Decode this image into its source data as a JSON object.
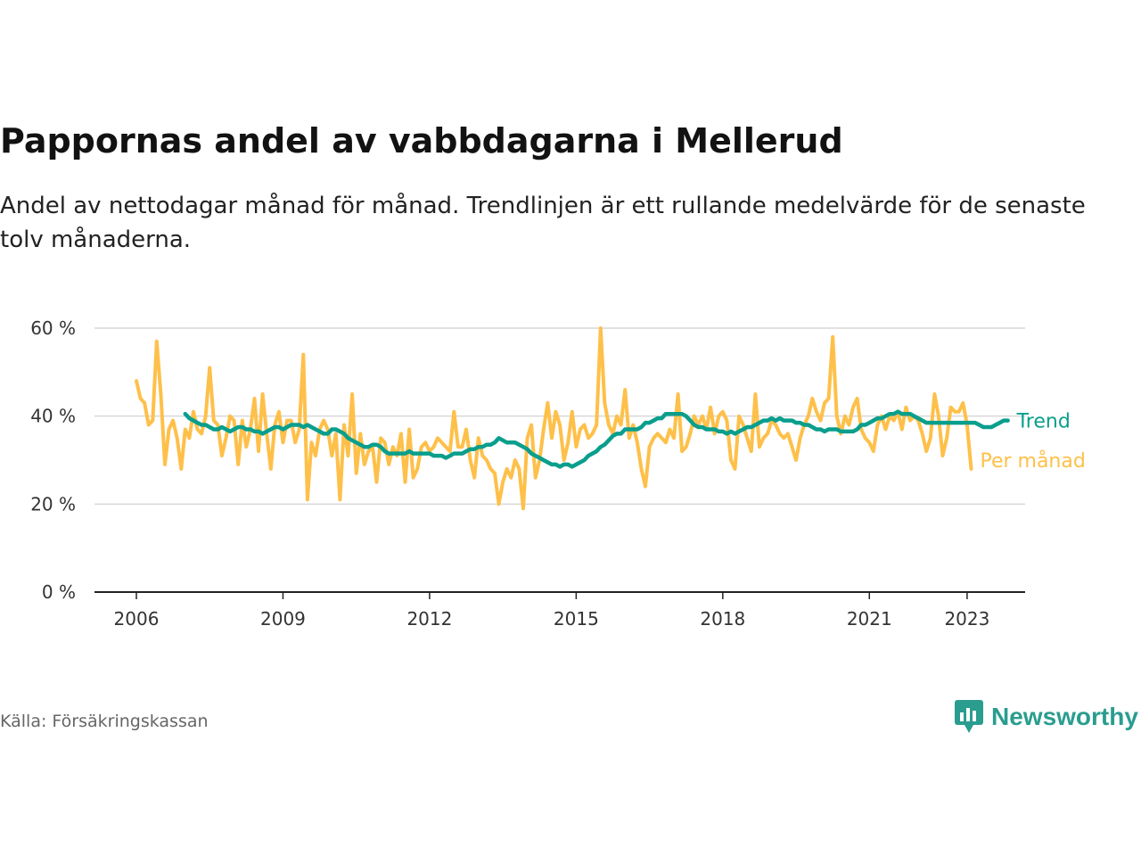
{
  "title": "Pappornas andel av vabbdagarna i Mellerud",
  "subtitle": "Andel av nettodagar månad för månad. Trendlinjen är ett rullande medelvärde för de senaste tolv månaderna.",
  "source": "Källa: Försäkringskassan",
  "brand": "Newsworthy",
  "colors": {
    "monthly": "#fec04a",
    "trend": "#0a9e8c",
    "grid": "#d9d9d9",
    "axis": "#222222"
  },
  "chart_data": {
    "type": "line",
    "title": "Pappornas andel av vabbdagarna i Mellerud",
    "ylim": [
      0,
      60
    ],
    "y_ticks": [
      "0 %",
      "20 %",
      "40 %",
      "60 %"
    ],
    "y_tick_values": [
      0,
      20,
      40,
      60
    ],
    "x_ticks": [
      "2006",
      "2009",
      "2012",
      "2015",
      "2018",
      "2021",
      "2023"
    ],
    "x_tick_values": [
      2006,
      2009,
      2012,
      2015,
      2018,
      2021,
      2023
    ],
    "grid": true,
    "series": [
      {
        "name": "Per månad",
        "color": "#fec04a",
        "x_start": "2006-01",
        "values": [
          48,
          44,
          43,
          38,
          39,
          57,
          45,
          29,
          37,
          39,
          35,
          28,
          37,
          35,
          41,
          37,
          36,
          40,
          51,
          39,
          38,
          31,
          35,
          40,
          39,
          29,
          39,
          33,
          37,
          44,
          32,
          45,
          36,
          28,
          38,
          41,
          34,
          39,
          39,
          34,
          37,
          54,
          21,
          34,
          31,
          37,
          39,
          37,
          31,
          36,
          21,
          38,
          31,
          45,
          27,
          36,
          29,
          32,
          33,
          25,
          35,
          34,
          29,
          33,
          31,
          36,
          25,
          37,
          26,
          28,
          33,
          34,
          32,
          33,
          35,
          34,
          33,
          32,
          41,
          33,
          33,
          37,
          30,
          26,
          35,
          31,
          30,
          28,
          27,
          20,
          25,
          28,
          26,
          30,
          28,
          19,
          35,
          38,
          26,
          30,
          37,
          43,
          35,
          41,
          38,
          30,
          34,
          41,
          33,
          37,
          38,
          35,
          36,
          38,
          60,
          43,
          38,
          36,
          40,
          38,
          46,
          35,
          38,
          34,
          28,
          24,
          33,
          35,
          36,
          35,
          34,
          37,
          35,
          45,
          32,
          33,
          36,
          40,
          38,
          40,
          37,
          42,
          36,
          40,
          41,
          39,
          30,
          28,
          40,
          38,
          35,
          32,
          45,
          33,
          35,
          36,
          39,
          38,
          36,
          35,
          36,
          33,
          30,
          35,
          38,
          40,
          44,
          41,
          39,
          43,
          44,
          58,
          40,
          36,
          40,
          38,
          42,
          44,
          37,
          35,
          34,
          32,
          38,
          40,
          37,
          40,
          39,
          41,
          37,
          42,
          39,
          40,
          39,
          36,
          32,
          35,
          45,
          40,
          31,
          35,
          42,
          41,
          41,
          43,
          38,
          28
        ]
      },
      {
        "name": "Trend",
        "color": "#0a9e8c",
        "x_start": "2007-01",
        "values": [
          40.5,
          39.5,
          39,
          38.5,
          38,
          38,
          37.5,
          37,
          37,
          37.5,
          37,
          36.5,
          37,
          37.5,
          37.5,
          37,
          37,
          36.5,
          36.5,
          36,
          36.5,
          37,
          37.5,
          37.5,
          37,
          37.5,
          38,
          38,
          38,
          37.5,
          38,
          37.5,
          37,
          36.5,
          36,
          36,
          37,
          37,
          36.5,
          36,
          35,
          34.5,
          34,
          33.5,
          33,
          33,
          33.5,
          33.5,
          33,
          32,
          31.5,
          31.5,
          31.5,
          31.5,
          31.5,
          32,
          31.5,
          31.5,
          31.5,
          31.5,
          31.5,
          31,
          31,
          31,
          30.5,
          31,
          31.5,
          31.5,
          31.5,
          32,
          32.5,
          32.5,
          33,
          33,
          33.5,
          33.5,
          34,
          35,
          34.5,
          34,
          34,
          34,
          33.5,
          33,
          32.5,
          31.5,
          31,
          30.5,
          30,
          29.5,
          29,
          29,
          28.5,
          29,
          29,
          28.5,
          29,
          29.5,
          30,
          31,
          31.5,
          32,
          33,
          33.5,
          34.5,
          35.5,
          36,
          36,
          37,
          37,
          37,
          37,
          37.5,
          38.5,
          38.5,
          39,
          39.5,
          39.5,
          40.5,
          40.5,
          40.5,
          40.5,
          40.5,
          40,
          39,
          38,
          37.5,
          37.5,
          37,
          37,
          37,
          36.5,
          36.5,
          36,
          36.5,
          36,
          36.5,
          37,
          37.5,
          37.5,
          38,
          38.5,
          39,
          39,
          39.5,
          39,
          39.5,
          39,
          39,
          39,
          38.5,
          38.5,
          38,
          38,
          37.5,
          37,
          37,
          36.5,
          37,
          37,
          37,
          36.5,
          36.5,
          36.5,
          36.5,
          37,
          38,
          38,
          38.5,
          39,
          39.5,
          39.5,
          40,
          40.5,
          40.5,
          41,
          40.5,
          40.5,
          40.5,
          40,
          39.5,
          39,
          38.5,
          38.5,
          38.5,
          38.5,
          38.5,
          38.5,
          38.5,
          38.5,
          38.5,
          38.5,
          38.5,
          38.5,
          38.5,
          38,
          37.5,
          37.5,
          37.5,
          38,
          38.5,
          39,
          39
        ]
      }
    ]
  }
}
